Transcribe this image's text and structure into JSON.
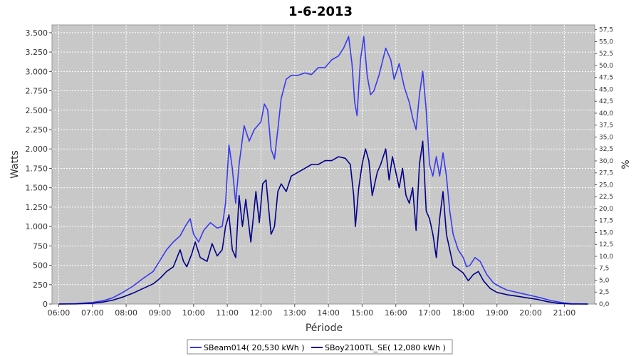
{
  "chart_data": {
    "type": "line",
    "title": "1-6-2013",
    "xlabel": "Période",
    "ylabel": "Watts",
    "y2label": "%",
    "x_unit": "hour of day",
    "xlim": [
      5.8,
      21.9
    ],
    "ylim": [
      0,
      3600
    ],
    "y2lim": [
      0,
      58.5
    ],
    "grid": true,
    "legend_position": "bottom-center",
    "x_tick_labels": [
      "06:00",
      "07:00",
      "08:00",
      "09:00",
      "10:00",
      "11:00",
      "12:00",
      "13:00",
      "14:00",
      "15:00",
      "16:00",
      "17:00",
      "18:00",
      "19:00",
      "20:00",
      "21:00"
    ],
    "x_ticks": [
      6,
      7,
      8,
      9,
      10,
      11,
      12,
      13,
      14,
      15,
      16,
      17,
      18,
      19,
      20,
      21
    ],
    "y_ticks": [
      0,
      250,
      500,
      750,
      1000,
      1250,
      1500,
      1750,
      2000,
      2250,
      2500,
      2750,
      3000,
      3250,
      3500
    ],
    "y_tick_labels": [
      "0",
      "250",
      "500",
      "750",
      "1.000",
      "1.250",
      "1.500",
      "1.750",
      "2.000",
      "2.250",
      "2.500",
      "2.750",
      "3.000",
      "3.250",
      "3.500"
    ],
    "y2_tick_labels": [
      "0,0",
      "2,5",
      "5,0",
      "7,5",
      "10,0",
      "12,5",
      "15,0",
      "17,5",
      "20,0",
      "22,5",
      "25,0",
      "27,5",
      "30,0",
      "32,5",
      "35,0",
      "37,5",
      "40,0",
      "42,5",
      "45,0",
      "47,5",
      "50,0",
      "52,5",
      "55,0",
      "57,5"
    ],
    "series": [
      {
        "name": "SBeam014( 20,530 kWh )",
        "color": "#3a3aee",
        "points": [
          [
            6.0,
            0
          ],
          [
            6.5,
            5
          ],
          [
            7.0,
            20
          ],
          [
            7.3,
            40
          ],
          [
            7.6,
            80
          ],
          [
            7.9,
            150
          ],
          [
            8.2,
            230
          ],
          [
            8.5,
            330
          ],
          [
            8.8,
            420
          ],
          [
            9.0,
            560
          ],
          [
            9.2,
            700
          ],
          [
            9.4,
            800
          ],
          [
            9.6,
            880
          ],
          [
            9.75,
            1000
          ],
          [
            9.9,
            1100
          ],
          [
            10.0,
            900
          ],
          [
            10.15,
            800
          ],
          [
            10.3,
            950
          ],
          [
            10.5,
            1050
          ],
          [
            10.7,
            980
          ],
          [
            10.85,
            1000
          ],
          [
            10.95,
            1300
          ],
          [
            11.05,
            2050
          ],
          [
            11.15,
            1750
          ],
          [
            11.25,
            1300
          ],
          [
            11.35,
            1800
          ],
          [
            11.5,
            2300
          ],
          [
            11.65,
            2100
          ],
          [
            11.8,
            2250
          ],
          [
            12.0,
            2350
          ],
          [
            12.1,
            2580
          ],
          [
            12.2,
            2500
          ],
          [
            12.3,
            2000
          ],
          [
            12.4,
            1870
          ],
          [
            12.5,
            2250
          ],
          [
            12.6,
            2650
          ],
          [
            12.75,
            2900
          ],
          [
            12.9,
            2950
          ],
          [
            13.1,
            2950
          ],
          [
            13.3,
            2980
          ],
          [
            13.5,
            2960
          ],
          [
            13.7,
            3050
          ],
          [
            13.9,
            3050
          ],
          [
            14.1,
            3150
          ],
          [
            14.3,
            3200
          ],
          [
            14.45,
            3300
          ],
          [
            14.6,
            3450
          ],
          [
            14.7,
            3100
          ],
          [
            14.78,
            2600
          ],
          [
            14.85,
            2430
          ],
          [
            14.95,
            3150
          ],
          [
            15.05,
            3450
          ],
          [
            15.15,
            2950
          ],
          [
            15.25,
            2700
          ],
          [
            15.35,
            2750
          ],
          [
            15.5,
            2950
          ],
          [
            15.7,
            3300
          ],
          [
            15.85,
            3150
          ],
          [
            15.95,
            2900
          ],
          [
            16.1,
            3100
          ],
          [
            16.25,
            2800
          ],
          [
            16.4,
            2600
          ],
          [
            16.5,
            2400
          ],
          [
            16.6,
            2250
          ],
          [
            16.7,
            2700
          ],
          [
            16.8,
            3000
          ],
          [
            16.9,
            2500
          ],
          [
            17.0,
            1800
          ],
          [
            17.1,
            1650
          ],
          [
            17.2,
            1900
          ],
          [
            17.3,
            1650
          ],
          [
            17.4,
            1950
          ],
          [
            17.5,
            1650
          ],
          [
            17.6,
            1200
          ],
          [
            17.7,
            900
          ],
          [
            17.85,
            700
          ],
          [
            18.0,
            600
          ],
          [
            18.1,
            480
          ],
          [
            18.2,
            500
          ],
          [
            18.35,
            600
          ],
          [
            18.5,
            550
          ],
          [
            18.7,
            380
          ],
          [
            18.9,
            270
          ],
          [
            19.1,
            220
          ],
          [
            19.3,
            180
          ],
          [
            19.5,
            160
          ],
          [
            19.7,
            140
          ],
          [
            20.0,
            110
          ],
          [
            20.3,
            80
          ],
          [
            20.6,
            45
          ],
          [
            20.9,
            20
          ],
          [
            21.2,
            5
          ],
          [
            21.7,
            0
          ]
        ]
      },
      {
        "name": "SBoy2100TL_SE( 12,080 kWh )",
        "color": "#00008b",
        "points": [
          [
            6.0,
            0
          ],
          [
            6.5,
            2
          ],
          [
            7.0,
            10
          ],
          [
            7.3,
            25
          ],
          [
            7.6,
            50
          ],
          [
            7.9,
            90
          ],
          [
            8.2,
            140
          ],
          [
            8.5,
            200
          ],
          [
            8.8,
            260
          ],
          [
            9.0,
            330
          ],
          [
            9.2,
            420
          ],
          [
            9.4,
            480
          ],
          [
            9.6,
            700
          ],
          [
            9.7,
            550
          ],
          [
            9.8,
            480
          ],
          [
            9.95,
            650
          ],
          [
            10.05,
            800
          ],
          [
            10.2,
            600
          ],
          [
            10.4,
            550
          ],
          [
            10.55,
            780
          ],
          [
            10.7,
            620
          ],
          [
            10.85,
            700
          ],
          [
            10.95,
            1000
          ],
          [
            11.05,
            1150
          ],
          [
            11.15,
            700
          ],
          [
            11.25,
            600
          ],
          [
            11.35,
            1400
          ],
          [
            11.45,
            1000
          ],
          [
            11.55,
            1350
          ],
          [
            11.7,
            800
          ],
          [
            11.85,
            1450
          ],
          [
            11.95,
            1050
          ],
          [
            12.05,
            1550
          ],
          [
            12.15,
            1600
          ],
          [
            12.3,
            900
          ],
          [
            12.4,
            1000
          ],
          [
            12.5,
            1450
          ],
          [
            12.6,
            1550
          ],
          [
            12.75,
            1450
          ],
          [
            12.9,
            1650
          ],
          [
            13.1,
            1700
          ],
          [
            13.3,
            1750
          ],
          [
            13.5,
            1800
          ],
          [
            13.7,
            1800
          ],
          [
            13.9,
            1850
          ],
          [
            14.1,
            1850
          ],
          [
            14.3,
            1900
          ],
          [
            14.5,
            1880
          ],
          [
            14.65,
            1800
          ],
          [
            14.75,
            1400
          ],
          [
            14.8,
            1000
          ],
          [
            14.9,
            1500
          ],
          [
            15.0,
            1800
          ],
          [
            15.1,
            2000
          ],
          [
            15.2,
            1850
          ],
          [
            15.3,
            1400
          ],
          [
            15.45,
            1700
          ],
          [
            15.55,
            1800
          ],
          [
            15.7,
            2000
          ],
          [
            15.8,
            1600
          ],
          [
            15.9,
            1900
          ],
          [
            16.0,
            1700
          ],
          [
            16.1,
            1500
          ],
          [
            16.2,
            1750
          ],
          [
            16.3,
            1400
          ],
          [
            16.4,
            1300
          ],
          [
            16.5,
            1500
          ],
          [
            16.6,
            950
          ],
          [
            16.7,
            1800
          ],
          [
            16.8,
            2100
          ],
          [
            16.9,
            1200
          ],
          [
            17.0,
            1100
          ],
          [
            17.1,
            900
          ],
          [
            17.2,
            600
          ],
          [
            17.3,
            1100
          ],
          [
            17.4,
            1450
          ],
          [
            17.5,
            900
          ],
          [
            17.6,
            700
          ],
          [
            17.7,
            500
          ],
          [
            17.85,
            450
          ],
          [
            18.0,
            400
          ],
          [
            18.15,
            300
          ],
          [
            18.3,
            380
          ],
          [
            18.45,
            420
          ],
          [
            18.6,
            300
          ],
          [
            18.8,
            200
          ],
          [
            19.0,
            150
          ],
          [
            19.3,
            120
          ],
          [
            19.6,
            100
          ],
          [
            19.9,
            80
          ],
          [
            20.2,
            60
          ],
          [
            20.5,
            30
          ],
          [
            20.8,
            10
          ],
          [
            21.2,
            0
          ],
          [
            21.7,
            0
          ]
        ]
      }
    ]
  }
}
